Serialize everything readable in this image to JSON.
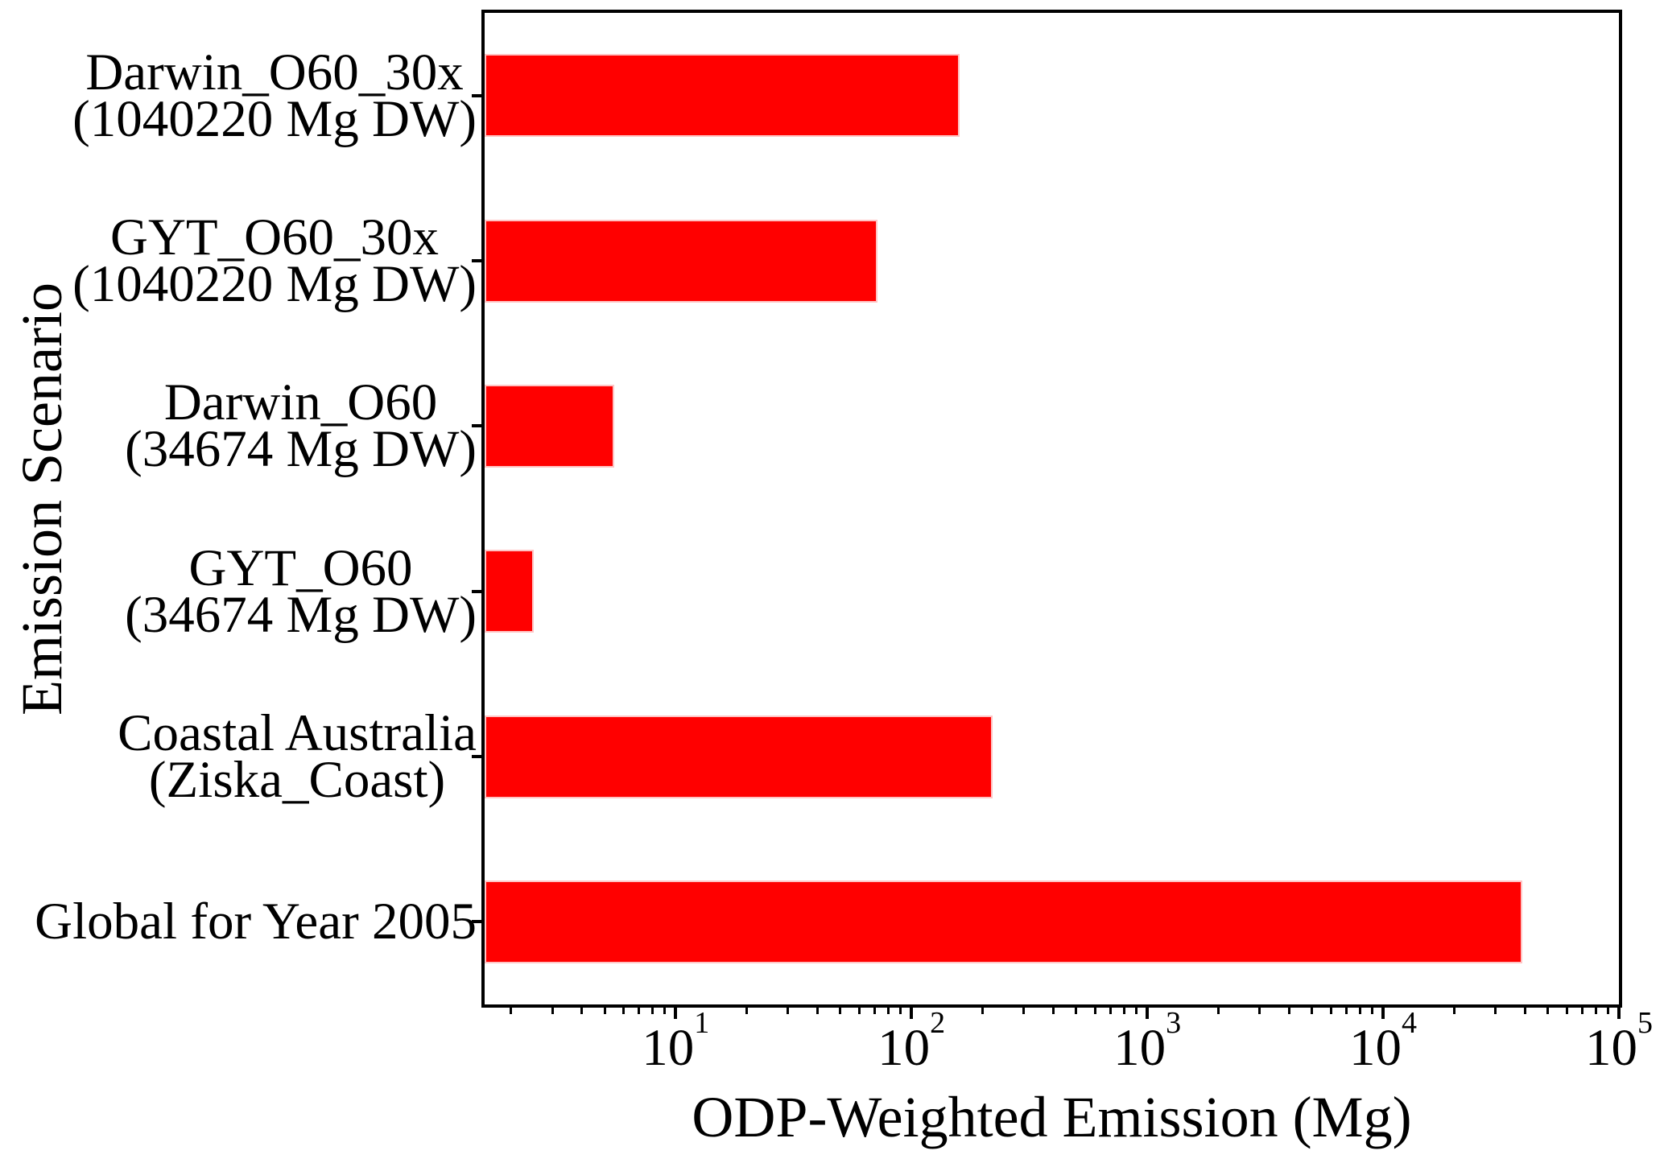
{
  "chart_data": {
    "type": "bar",
    "orientation": "horizontal",
    "title": "",
    "xlabel": "ODP-Weighted Emission (Mg)",
    "ylabel": "Emission Scenario",
    "x_scale": "log",
    "xlim": [
      1.55,
      100000
    ],
    "grid": false,
    "legend": null,
    "categories": [
      [
        "Darwin_O60_30x",
        "(1040220 Mg DW)"
      ],
      [
        "GYT_O60_30x",
        "(1040220 Mg DW)"
      ],
      [
        "Darwin_O60",
        "(34674 Mg DW)"
      ],
      [
        "GYT_O60",
        "(34674 Mg DW)"
      ],
      [
        "Coastal Australia",
        "(Ziska_Coast)"
      ],
      [
        "Global for Year 2005"
      ]
    ],
    "values": [
      160,
      72,
      5.5,
      2.5,
      220,
      39000
    ],
    "x_major_ticks": [
      {
        "value": 10,
        "base": "10",
        "exp": "1"
      },
      {
        "value": 100,
        "base": "10",
        "exp": "2"
      },
      {
        "value": 1000,
        "base": "10",
        "exp": "3"
      },
      {
        "value": 10000,
        "base": "10",
        "exp": "4"
      },
      {
        "value": 100000,
        "base": "10",
        "exp": "5"
      }
    ],
    "minor_tick_multiples": [
      2,
      3,
      4,
      5,
      6,
      7,
      8,
      9
    ],
    "colors": {
      "bar_fill": "#ff0000",
      "bar_edge": "#ffc4c4",
      "axis": "#000000",
      "background": "#ffffff"
    }
  }
}
